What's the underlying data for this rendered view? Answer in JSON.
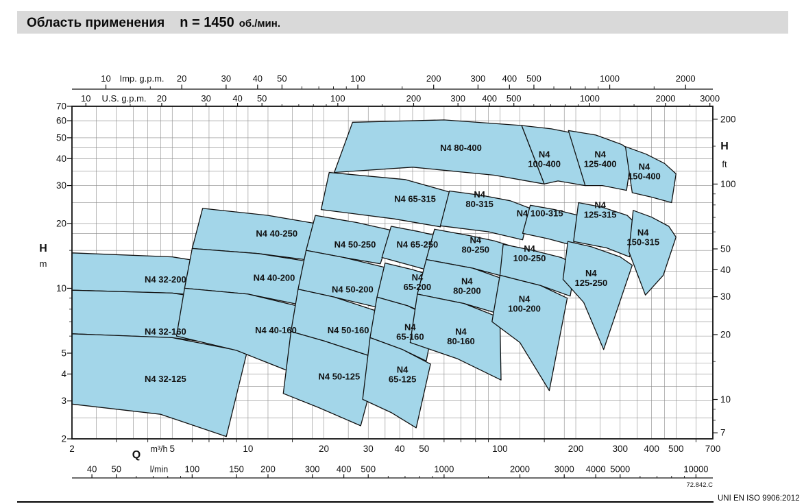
{
  "page": {
    "title": {
      "part1": "Область применения",
      "part2": "n = 1450",
      "part3": "об./мин."
    },
    "footer_code": "72.842.C",
    "footer_note": "UNI EN ISO 9906:2012"
  },
  "chart_data": {
    "type": "area",
    "title": "Область применения n = 1450 об./мин.",
    "scale": "log-log",
    "colors": {
      "fill": "#a3d6e9",
      "stroke": "#101010",
      "grid": "#8a8a8a"
    },
    "grid_mantissas": [
      1,
      1.2,
      1.5,
      1.8,
      2,
      2.5,
      3,
      3.5,
      4,
      4.5,
      5,
      6,
      7,
      8,
      9
    ],
    "x_main": {
      "label": "Q",
      "unit": "m³/h",
      "scale": "log",
      "min": 2,
      "max": 700,
      "ticks": [
        2,
        5,
        10,
        20,
        30,
        40,
        50,
        100,
        200,
        300,
        400,
        500,
        700
      ],
      "minor": [
        3,
        4,
        6,
        7,
        8,
        9,
        15,
        60,
        70,
        80,
        90,
        150,
        600
      ]
    },
    "x_lmin": {
      "unit": "l/min",
      "factor_to_m3h": 0.06,
      "ticks": [
        40,
        50,
        100,
        150,
        200,
        300,
        400,
        500,
        1000,
        2000,
        3000,
        4000,
        5000,
        10000
      ],
      "minor": [
        60,
        70,
        80,
        90,
        600,
        700,
        800,
        900,
        1500,
        6000,
        7000,
        8000,
        9000
      ]
    },
    "x_imp": {
      "unit": "Imp. g.p.m.",
      "factor_to_m3h": 0.27277,
      "ticks": [
        10,
        20,
        30,
        40,
        50,
        100,
        200,
        300,
        400,
        500,
        1000,
        2000
      ],
      "minor": [
        15,
        60,
        70,
        80,
        90,
        150,
        600,
        700,
        800,
        900,
        1500
      ]
    },
    "x_us": {
      "unit": "U.S. g.p.m.",
      "factor_to_m3h": 0.22712,
      "ticks": [
        10,
        20,
        30,
        40,
        50,
        100,
        200,
        300,
        400,
        500,
        1000,
        2000,
        3000
      ],
      "minor": [
        15,
        60,
        70,
        80,
        90,
        150,
        600,
        700,
        800,
        900,
        1500,
        2500
      ]
    },
    "y_main": {
      "label": "H",
      "unit": "m",
      "scale": "log",
      "min": 2,
      "max": 70,
      "ticks": [
        2,
        3,
        4,
        5,
        10,
        20,
        30,
        40,
        50,
        60,
        70
      ],
      "minor": [
        6,
        7,
        8,
        9,
        15
      ]
    },
    "y_ft": {
      "label": "H",
      "unit": "ft",
      "factor_to_m": 0.3048,
      "ticks": [
        7,
        10,
        20,
        30,
        40,
        50,
        100,
        200
      ],
      "minor": [
        8,
        9,
        15,
        60,
        70,
        80,
        90,
        150
      ]
    },
    "regions": [
      {
        "label": "N4 32-200",
        "two_line": false,
        "label_at": [
          4.7,
          11
        ],
        "points": [
          [
            2,
            14.6
          ],
          [
            5,
            14.0
          ],
          [
            10,
            12.3
          ],
          [
            9.2,
            8.9
          ],
          [
            5,
            9.5
          ],
          [
            2,
            9.8
          ]
        ]
      },
      {
        "label": "N4 32-160",
        "two_line": false,
        "label_at": [
          4.7,
          6.3
        ],
        "points": [
          [
            2,
            9.8
          ],
          [
            5,
            9.5
          ],
          [
            10.2,
            8.4
          ],
          [
            9.5,
            5.35
          ],
          [
            5,
            5.9
          ],
          [
            2,
            6.15
          ]
        ]
      },
      {
        "label": "N4 32-125",
        "two_line": false,
        "label_at": [
          4.7,
          3.8
        ],
        "points": [
          [
            2,
            6.15
          ],
          [
            5,
            5.9
          ],
          [
            9.9,
            5.05
          ],
          [
            8.2,
            2.05
          ],
          [
            4.5,
            2.6
          ],
          [
            2,
            2.9
          ]
        ]
      },
      {
        "label": "N4 40-250",
        "two_line": false,
        "label_at": [
          13,
          18
        ],
        "points": [
          [
            6.6,
            23.5
          ],
          [
            12,
            21.8
          ],
          [
            18.5,
            20.0
          ],
          [
            16.8,
            13.6
          ],
          [
            11,
            14.5
          ],
          [
            6.0,
            15.3
          ]
        ]
      },
      {
        "label": "N4 40-200",
        "two_line": false,
        "label_at": [
          12.7,
          11.2
        ],
        "points": [
          [
            6.0,
            15.3
          ],
          [
            11,
            14.5
          ],
          [
            17.5,
            13.3
          ],
          [
            16,
            8.4
          ],
          [
            10,
            9.4
          ],
          [
            5.6,
            10.0
          ]
        ]
      },
      {
        "label": "N4 40-160",
        "two_line": false,
        "label_at": [
          12.9,
          6.4
        ],
        "points": [
          [
            5.6,
            10.0
          ],
          [
            10,
            9.4
          ],
          [
            17,
            8.1
          ],
          [
            15.5,
            4.0
          ],
          [
            9,
            5.15
          ],
          [
            5.2,
            6.0
          ]
        ]
      },
      {
        "label": "N4 50-250",
        "two_line": false,
        "label_at": [
          26.6,
          16
        ],
        "points": [
          [
            18.5,
            21.8
          ],
          [
            27,
            20.2
          ],
          [
            37,
            18.6
          ],
          [
            33.5,
            13.0
          ],
          [
            24,
            13.9
          ],
          [
            17,
            15.0
          ]
        ]
      },
      {
        "label": "N4 50-200",
        "two_line": false,
        "label_at": [
          26,
          9.9
        ],
        "points": [
          [
            17,
            15.0
          ],
          [
            24,
            13.9
          ],
          [
            35,
            12.5
          ],
          [
            32,
            8.2
          ],
          [
            22,
            9.1
          ],
          [
            15.8,
            9.9
          ]
        ]
      },
      {
        "label": "N4 50-160",
        "two_line": false,
        "label_at": [
          25,
          6.4
        ],
        "points": [
          [
            15.8,
            9.9
          ],
          [
            22,
            9.1
          ],
          [
            34,
            7.7
          ],
          [
            30.5,
            4.85
          ],
          [
            20,
            5.7
          ],
          [
            14.8,
            6.3
          ]
        ]
      },
      {
        "label": "N4 50-125",
        "two_line": false,
        "label_at": [
          23,
          3.9
        ],
        "points": [
          [
            14.8,
            6.3
          ],
          [
            20,
            5.7
          ],
          [
            33,
            4.7
          ],
          [
            28,
            2.3
          ],
          [
            19,
            2.8
          ],
          [
            13.8,
            3.25
          ]
        ]
      },
      {
        "label": "N4 65-315",
        "two_line": false,
        "label_at": [
          46,
          26
        ],
        "points": [
          [
            21,
            34.5
          ],
          [
            42,
            32
          ],
          [
            63,
            28
          ],
          [
            58,
            19.3
          ],
          [
            38,
            21
          ],
          [
            19.5,
            23.2
          ]
        ]
      },
      {
        "label": "N4 65-250",
        "two_line": false,
        "label_at": [
          47,
          16
        ],
        "points": [
          [
            37,
            19.4
          ],
          [
            47,
            18.4
          ],
          [
            59,
            17.3
          ],
          [
            55,
            11.9
          ],
          [
            45,
            12.7
          ],
          [
            34,
            13.9
          ]
        ]
      },
      {
        "label": "N4 65-200",
        "two_line": true,
        "label_at": [
          47,
          10.7
        ],
        "points": [
          [
            35,
            13.1
          ],
          [
            45,
            12.2
          ],
          [
            57,
            11.2
          ],
          [
            53,
            7.5
          ],
          [
            43,
            8.3
          ],
          [
            32.5,
            9.1
          ]
        ]
      },
      {
        "label": "N4 65-160",
        "two_line": true,
        "label_at": [
          44,
          6.3
        ],
        "points": [
          [
            32.5,
            9.1
          ],
          [
            43,
            8.3
          ],
          [
            55,
            7.2
          ],
          [
            51,
            4.6
          ],
          [
            41,
            5.2
          ],
          [
            30.5,
            5.9
          ]
        ]
      },
      {
        "label": "N4 65-125",
        "two_line": true,
        "label_at": [
          41,
          4.0
        ],
        "points": [
          [
            30.5,
            5.9
          ],
          [
            41,
            5.2
          ],
          [
            53,
            4.45
          ],
          [
            46.5,
            2.25
          ],
          [
            37,
            2.65
          ],
          [
            28.5,
            3.05
          ]
        ]
      },
      {
        "label": "N4 80-400",
        "two_line": false,
        "label_at": [
          70,
          45
        ],
        "points": [
          [
            26,
            59
          ],
          [
            60,
            60.5
          ],
          [
            122,
            57
          ],
          [
            150,
            30.5
          ],
          [
            95,
            33.5
          ],
          [
            45,
            36.5
          ],
          [
            22,
            34.5
          ]
        ]
      },
      {
        "label": "N4 80-315",
        "two_line": true,
        "label_at": [
          83,
          26
        ],
        "points": [
          [
            63,
            28.3
          ],
          [
            85,
            27
          ],
          [
            110,
            25.5
          ],
          [
            132,
            23.5
          ],
          [
            123,
            16.8
          ],
          [
            90,
            18.3
          ],
          [
            58,
            19.5
          ]
        ]
      },
      {
        "label": "N4 80-250",
        "two_line": true,
        "label_at": [
          80,
          16
        ],
        "points": [
          [
            55,
            18.8
          ],
          [
            75,
            17.6
          ],
          [
            95,
            16.6
          ],
          [
            113,
            15.6
          ],
          [
            105,
            11.3
          ],
          [
            78,
            12.4
          ],
          [
            51,
            13.6
          ]
        ]
      },
      {
        "label": "N4 80-200",
        "two_line": true,
        "label_at": [
          74,
          10.3
        ],
        "points": [
          [
            51,
            13.6
          ],
          [
            78,
            12.4
          ],
          [
            102,
            11.1
          ],
          [
            96,
            7.7
          ],
          [
            72,
            8.5
          ],
          [
            47,
            9.4
          ]
        ]
      },
      {
        "label": "N4 80-160",
        "two_line": true,
        "label_at": [
          70,
          6.0
        ],
        "points": [
          [
            47,
            9.4
          ],
          [
            72,
            8.5
          ],
          [
            100,
            7.3
          ],
          [
            101,
            3.75
          ],
          [
            68,
            4.7
          ],
          [
            44,
            5.6
          ]
        ]
      },
      {
        "label": "N4 100-400",
        "two_line": true,
        "label_at": [
          150,
          40
        ],
        "points": [
          [
            122,
            57
          ],
          [
            160,
            55
          ],
          [
            232,
            50.5
          ],
          [
            218,
            30
          ],
          [
            170,
            31.5
          ],
          [
            150,
            30.5
          ]
        ]
      },
      {
        "label": "N4 100-315",
        "two_line": false,
        "label_at": [
          144,
          22.3
        ],
        "points": [
          [
            132,
            24.3
          ],
          [
            165,
            23.2
          ],
          [
            205,
            21.8
          ],
          [
            196,
            15.8
          ],
          [
            155,
            17
          ],
          [
            123,
            18
          ]
        ]
      },
      {
        "label": "N4 100-250",
        "two_line": true,
        "label_at": [
          131,
          14.6
        ],
        "points": [
          [
            103,
            16.0
          ],
          [
            135,
            15.0
          ],
          [
            175,
            13.9
          ],
          [
            200,
            12.9
          ],
          [
            190,
            9.2
          ],
          [
            145,
            10.3
          ],
          [
            100,
            11.5
          ]
        ]
      },
      {
        "label": "N4 100-200",
        "two_line": true,
        "label_at": [
          125,
          8.5
        ],
        "points": [
          [
            100,
            11.5
          ],
          [
            145,
            10.3
          ],
          [
            185,
            9.0
          ],
          [
            157,
            3.35
          ],
          [
            120,
            5.6
          ],
          [
            93,
            7.0
          ]
        ]
      },
      {
        "label": "N4 125-400",
        "two_line": true,
        "label_at": [
          250,
          40
        ],
        "points": [
          [
            187,
            54
          ],
          [
            240,
            51.5
          ],
          [
            305,
            46.5
          ],
          [
            335,
            43
          ],
          [
            318,
            28.5
          ],
          [
            255,
            30
          ],
          [
            218,
            30
          ]
        ]
      },
      {
        "label": "N4 125-315",
        "two_line": true,
        "label_at": [
          250,
          23.2
        ],
        "points": [
          [
            205,
            25
          ],
          [
            255,
            23.8
          ],
          [
            320,
            21.8
          ],
          [
            345,
            20
          ],
          [
            327,
            14
          ],
          [
            265,
            15.4
          ],
          [
            196,
            16.5
          ]
        ]
      },
      {
        "label": "N4 125-250",
        "two_line": true,
        "label_at": [
          230,
          11.2
        ],
        "points": [
          [
            186,
            16.5
          ],
          [
            230,
            15.6
          ],
          [
            300,
            14
          ],
          [
            335,
            12.8
          ],
          [
            258,
            5.2
          ],
          [
            215,
            8.6
          ],
          [
            178,
            11
          ]
        ]
      },
      {
        "label": "N4 150-400",
        "two_line": true,
        "label_at": [
          374,
          35
        ],
        "points": [
          [
            315,
            45.5
          ],
          [
            380,
            42
          ],
          [
            450,
            38
          ],
          [
            500,
            34
          ],
          [
            480,
            25
          ],
          [
            400,
            26.5
          ],
          [
            335,
            27.8
          ]
        ]
      },
      {
        "label": "N4 150-315",
        "two_line": true,
        "label_at": [
          370,
          17.3
        ],
        "points": [
          [
            338,
            23
          ],
          [
            400,
            21.4
          ],
          [
            468,
            19.4
          ],
          [
            500,
            17.3
          ],
          [
            445,
            11.5
          ],
          [
            378,
            9.3
          ],
          [
            325,
            14.8
          ]
        ]
      }
    ]
  }
}
